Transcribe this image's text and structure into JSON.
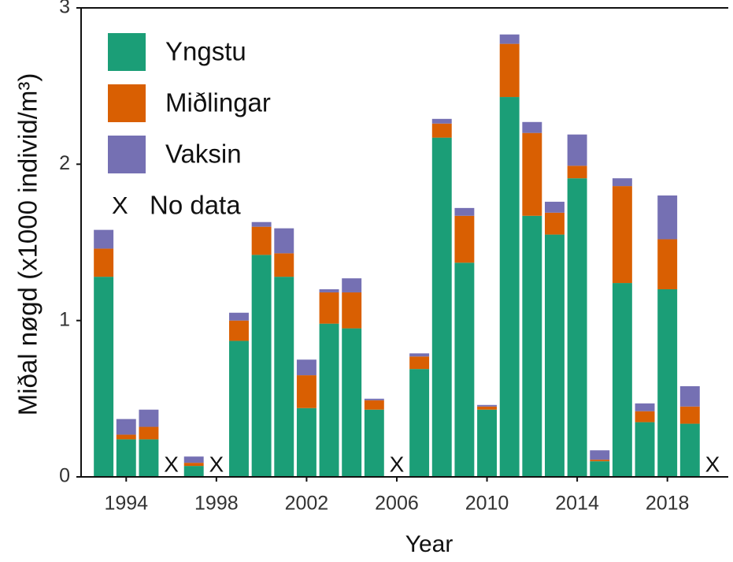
{
  "chart_data": {
    "type": "stacked_bar",
    "x_label": "Year",
    "y_label": "Miðal nøgd (x1000 individ/m³)",
    "x": [
      1993,
      1994,
      1995,
      1996,
      1997,
      1998,
      1999,
      2000,
      2001,
      2002,
      2003,
      2004,
      2005,
      2006,
      2007,
      2008,
      2009,
      2010,
      2011,
      2012,
      2013,
      2014,
      2015,
      2016,
      2017,
      2018,
      2019,
      2020
    ],
    "series": [
      {
        "name": "Yngstu",
        "color": "#1b9e77",
        "values": [
          1.28,
          0.24,
          0.24,
          null,
          0.07,
          null,
          0.87,
          1.42,
          1.28,
          0.44,
          0.98,
          0.95,
          0.43,
          null,
          0.69,
          2.17,
          1.37,
          0.43,
          2.43,
          1.67,
          1.55,
          1.91,
          0.1,
          1.24,
          0.35,
          1.2,
          0.34,
          null
        ]
      },
      {
        "name": "Miðlingar",
        "color": "#d95f02",
        "values": [
          0.18,
          0.03,
          0.08,
          null,
          0.02,
          null,
          0.13,
          0.18,
          0.15,
          0.21,
          0.2,
          0.23,
          0.06,
          null,
          0.08,
          0.09,
          0.3,
          0.02,
          0.34,
          0.53,
          0.14,
          0.08,
          0.01,
          0.62,
          0.07,
          0.32,
          0.11,
          null
        ]
      },
      {
        "name": "Vaksin",
        "color": "#7570b3",
        "values": [
          0.12,
          0.1,
          0.11,
          null,
          0.04,
          null,
          0.05,
          0.03,
          0.16,
          0.1,
          0.02,
          0.09,
          0.01,
          null,
          0.02,
          0.03,
          0.05,
          0.01,
          0.06,
          0.07,
          0.07,
          0.2,
          0.06,
          0.05,
          0.05,
          0.28,
          0.13,
          null
        ]
      }
    ],
    "no_data": {
      "marker": "X",
      "label": "No data",
      "x": [
        1996,
        1998,
        2006,
        2020
      ]
    },
    "xlim": [
      1992,
      2020.7
    ],
    "xticks": [
      1994,
      1998,
      2002,
      2006,
      2010,
      2014,
      2018
    ],
    "ylim": [
      0,
      3
    ],
    "yticks": [
      0,
      1,
      2,
      3
    ],
    "legend": "top-left"
  }
}
